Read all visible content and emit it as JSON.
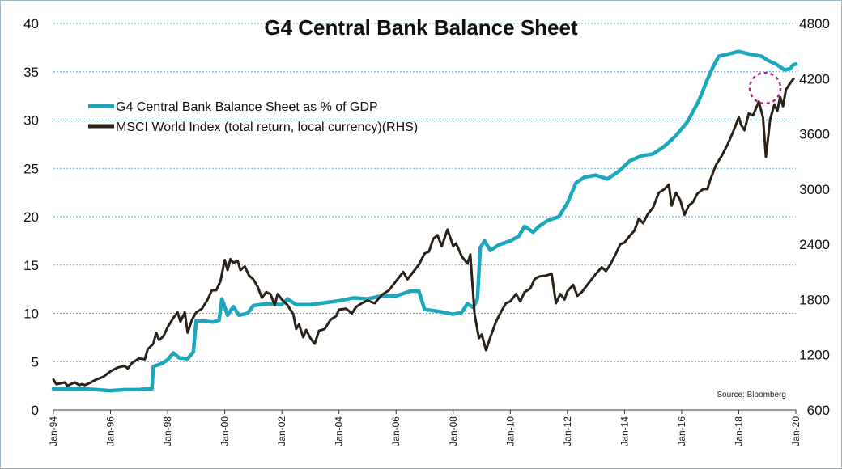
{
  "chart_data": {
    "type": "line",
    "title": "G4 Central Bank Balance Sheet",
    "source": "Source: Bloomberg",
    "grid": true,
    "legend_position": "top-left",
    "x_ticks": [
      "Jan-94",
      "Jan-96",
      "Jan-98",
      "Jan-00",
      "Jan-02",
      "Jan-04",
      "Jan-06",
      "Jan-08",
      "Jan-10",
      "Jan-12",
      "Jan-14",
      "Jan-16",
      "Jan-18",
      "Jan-20"
    ],
    "xlim": [
      1994.0,
      2020.0
    ],
    "y_left": {
      "label": "",
      "ticks": [
        "0",
        "5",
        "10",
        "15",
        "20",
        "25",
        "30",
        "35",
        "40"
      ],
      "lim": [
        0,
        40
      ]
    },
    "y_right": {
      "label": "",
      "ticks": [
        "600",
        "1200",
        "1800",
        "2400",
        "3000",
        "3600",
        "4200",
        "4800"
      ],
      "lim": [
        600,
        4800
      ]
    },
    "colors": {
      "g4": "#1ba8bd",
      "msci": "#2a2118",
      "highlight": "#b3287e",
      "grid": "#5aaed0"
    },
    "series": [
      {
        "name": "G4 Central Bank Balance Sheet as % of GDP",
        "axis": "left",
        "points": [
          [
            1994.0,
            2.2
          ],
          [
            1995.0,
            2.2
          ],
          [
            1995.5,
            2.1
          ],
          [
            1996.0,
            2.0
          ],
          [
            1996.5,
            2.1
          ],
          [
            1997.0,
            2.1
          ],
          [
            1997.3,
            2.2
          ],
          [
            1997.45,
            2.2
          ],
          [
            1997.5,
            4.5
          ],
          [
            1997.8,
            4.8
          ],
          [
            1998.0,
            5.2
          ],
          [
            1998.2,
            5.9
          ],
          [
            1998.4,
            5.4
          ],
          [
            1998.7,
            5.3
          ],
          [
            1998.9,
            6.0
          ],
          [
            1999.0,
            9.2
          ],
          [
            1999.3,
            9.2
          ],
          [
            1999.6,
            9.1
          ],
          [
            1999.8,
            9.3
          ],
          [
            1999.9,
            11.5
          ],
          [
            2000.1,
            9.8
          ],
          [
            2000.3,
            10.7
          ],
          [
            2000.5,
            9.8
          ],
          [
            2000.8,
            10.0
          ],
          [
            2001.0,
            10.8
          ],
          [
            2001.5,
            11.0
          ],
          [
            2002.0,
            10.9
          ],
          [
            2002.2,
            11.5
          ],
          [
            2002.5,
            10.9
          ],
          [
            2003.0,
            10.9
          ],
          [
            2003.5,
            11.1
          ],
          [
            2004.0,
            11.3
          ],
          [
            2004.5,
            11.6
          ],
          [
            2005.0,
            11.5
          ],
          [
            2005.5,
            11.8
          ],
          [
            2006.0,
            11.8
          ],
          [
            2006.5,
            12.3
          ],
          [
            2006.8,
            12.3
          ],
          [
            2007.0,
            10.4
          ],
          [
            2007.5,
            10.2
          ],
          [
            2008.0,
            9.9
          ],
          [
            2008.3,
            10.1
          ],
          [
            2008.5,
            11.0
          ],
          [
            2008.7,
            10.6
          ],
          [
            2008.85,
            11.5
          ],
          [
            2008.95,
            16.8
          ],
          [
            2009.1,
            17.5
          ],
          [
            2009.3,
            16.5
          ],
          [
            2009.6,
            17.1
          ],
          [
            2010.0,
            17.5
          ],
          [
            2010.3,
            18.0
          ],
          [
            2010.5,
            19.0
          ],
          [
            2010.8,
            18.4
          ],
          [
            2011.0,
            19.0
          ],
          [
            2011.3,
            19.6
          ],
          [
            2011.7,
            20.0
          ],
          [
            2012.0,
            21.4
          ],
          [
            2012.3,
            23.5
          ],
          [
            2012.6,
            24.1
          ],
          [
            2013.0,
            24.3
          ],
          [
            2013.4,
            23.9
          ],
          [
            2013.8,
            24.7
          ],
          [
            2014.2,
            25.8
          ],
          [
            2014.6,
            26.3
          ],
          [
            2015.0,
            26.5
          ],
          [
            2015.4,
            27.3
          ],
          [
            2015.8,
            28.4
          ],
          [
            2016.2,
            29.8
          ],
          [
            2016.6,
            32.0
          ],
          [
            2016.9,
            34.2
          ],
          [
            2017.1,
            35.5
          ],
          [
            2017.3,
            36.6
          ],
          [
            2017.6,
            36.8
          ],
          [
            2018.0,
            37.1
          ],
          [
            2018.4,
            36.8
          ],
          [
            2018.8,
            36.6
          ],
          [
            2019.0,
            36.2
          ],
          [
            2019.3,
            35.8
          ],
          [
            2019.6,
            35.2
          ],
          [
            2019.8,
            35.3
          ],
          [
            2019.9,
            35.7
          ],
          [
            2020.0,
            35.8
          ]
        ]
      },
      {
        "name": "MSCI World Index (total return, local currency)(RHS)",
        "axis": "right",
        "points": [
          [
            1994.0,
            930
          ],
          [
            1994.1,
            880
          ],
          [
            1994.25,
            890
          ],
          [
            1994.4,
            900
          ],
          [
            1994.5,
            860
          ],
          [
            1994.6,
            880
          ],
          [
            1994.75,
            900
          ],
          [
            1994.9,
            870
          ],
          [
            1995.0,
            880
          ],
          [
            1995.1,
            870
          ],
          [
            1995.25,
            890
          ],
          [
            1995.5,
            930
          ],
          [
            1995.75,
            960
          ],
          [
            1996.0,
            1020
          ],
          [
            1996.25,
            1060
          ],
          [
            1996.5,
            1080
          ],
          [
            1996.6,
            1050
          ],
          [
            1996.75,
            1110
          ],
          [
            1997.0,
            1160
          ],
          [
            1997.2,
            1150
          ],
          [
            1997.3,
            1260
          ],
          [
            1997.5,
            1320
          ],
          [
            1997.6,
            1440
          ],
          [
            1997.7,
            1360
          ],
          [
            1997.85,
            1400
          ],
          [
            1998.0,
            1500
          ],
          [
            1998.2,
            1600
          ],
          [
            1998.35,
            1660
          ],
          [
            1998.45,
            1560
          ],
          [
            1998.6,
            1660
          ],
          [
            1998.7,
            1440
          ],
          [
            1998.85,
            1580
          ],
          [
            1999.0,
            1660
          ],
          [
            1999.2,
            1700
          ],
          [
            1999.4,
            1800
          ],
          [
            1999.55,
            1900
          ],
          [
            1999.7,
            1900
          ],
          [
            1999.85,
            2000
          ],
          [
            2000.0,
            2230
          ],
          [
            2000.1,
            2120
          ],
          [
            2000.2,
            2240
          ],
          [
            2000.3,
            2200
          ],
          [
            2000.45,
            2220
          ],
          [
            2000.55,
            2120
          ],
          [
            2000.7,
            2160
          ],
          [
            2000.85,
            2060
          ],
          [
            2001.0,
            2020
          ],
          [
            2001.15,
            1940
          ],
          [
            2001.3,
            1820
          ],
          [
            2001.45,
            1880
          ],
          [
            2001.6,
            1860
          ],
          [
            2001.75,
            1740
          ],
          [
            2001.85,
            1860
          ],
          [
            2002.0,
            1800
          ],
          [
            2002.2,
            1740
          ],
          [
            2002.4,
            1640
          ],
          [
            2002.5,
            1480
          ],
          [
            2002.6,
            1530
          ],
          [
            2002.75,
            1390
          ],
          [
            2002.85,
            1470
          ],
          [
            2003.0,
            1380
          ],
          [
            2003.15,
            1320
          ],
          [
            2003.3,
            1460
          ],
          [
            2003.5,
            1480
          ],
          [
            2003.7,
            1580
          ],
          [
            2003.9,
            1620
          ],
          [
            2004.0,
            1690
          ],
          [
            2004.25,
            1700
          ],
          [
            2004.45,
            1650
          ],
          [
            2004.6,
            1720
          ],
          [
            2004.8,
            1760
          ],
          [
            2005.0,
            1790
          ],
          [
            2005.25,
            1760
          ],
          [
            2005.5,
            1850
          ],
          [
            2005.75,
            1900
          ],
          [
            2006.0,
            2000
          ],
          [
            2006.25,
            2100
          ],
          [
            2006.4,
            2020
          ],
          [
            2006.6,
            2100
          ],
          [
            2006.8,
            2180
          ],
          [
            2007.0,
            2300
          ],
          [
            2007.15,
            2320
          ],
          [
            2007.3,
            2460
          ],
          [
            2007.45,
            2500
          ],
          [
            2007.6,
            2380
          ],
          [
            2007.8,
            2560
          ],
          [
            2008.0,
            2380
          ],
          [
            2008.1,
            2410
          ],
          [
            2008.3,
            2270
          ],
          [
            2008.5,
            2190
          ],
          [
            2008.6,
            2290
          ],
          [
            2008.75,
            1640
          ],
          [
            2008.9,
            1380
          ],
          [
            2009.0,
            1420
          ],
          [
            2009.15,
            1250
          ],
          [
            2009.3,
            1390
          ],
          [
            2009.5,
            1560
          ],
          [
            2009.7,
            1680
          ],
          [
            2009.85,
            1760
          ],
          [
            2010.0,
            1780
          ],
          [
            2010.2,
            1860
          ],
          [
            2010.35,
            1780
          ],
          [
            2010.5,
            1880
          ],
          [
            2010.7,
            1920
          ],
          [
            2010.85,
            2020
          ],
          [
            2011.0,
            2050
          ],
          [
            2011.25,
            2060
          ],
          [
            2011.45,
            2080
          ],
          [
            2011.6,
            1760
          ],
          [
            2011.75,
            1860
          ],
          [
            2011.9,
            1800
          ],
          [
            2012.0,
            1890
          ],
          [
            2012.2,
            1960
          ],
          [
            2012.35,
            1840
          ],
          [
            2012.5,
            1880
          ],
          [
            2012.7,
            1960
          ],
          [
            2012.9,
            2040
          ],
          [
            2013.0,
            2080
          ],
          [
            2013.2,
            2150
          ],
          [
            2013.35,
            2110
          ],
          [
            2013.5,
            2180
          ],
          [
            2013.7,
            2300
          ],
          [
            2013.85,
            2400
          ],
          [
            2014.0,
            2420
          ],
          [
            2014.2,
            2500
          ],
          [
            2014.35,
            2550
          ],
          [
            2014.5,
            2680
          ],
          [
            2014.65,
            2630
          ],
          [
            2014.8,
            2720
          ],
          [
            2015.0,
            2800
          ],
          [
            2015.2,
            2960
          ],
          [
            2015.4,
            3000
          ],
          [
            2015.55,
            3050
          ],
          [
            2015.65,
            2820
          ],
          [
            2015.8,
            2960
          ],
          [
            2015.95,
            2880
          ],
          [
            2016.1,
            2720
          ],
          [
            2016.25,
            2820
          ],
          [
            2016.4,
            2860
          ],
          [
            2016.55,
            2950
          ],
          [
            2016.75,
            3000
          ],
          [
            2016.9,
            3000
          ],
          [
            2017.0,
            3100
          ],
          [
            2017.2,
            3260
          ],
          [
            2017.4,
            3360
          ],
          [
            2017.6,
            3480
          ],
          [
            2017.8,
            3620
          ],
          [
            2018.0,
            3780
          ],
          [
            2018.08,
            3700
          ],
          [
            2018.2,
            3640
          ],
          [
            2018.35,
            3820
          ],
          [
            2018.5,
            3800
          ],
          [
            2018.7,
            3950
          ],
          [
            2018.85,
            3780
          ],
          [
            2018.95,
            3350
          ],
          [
            2019.1,
            3760
          ],
          [
            2019.25,
            3920
          ],
          [
            2019.35,
            3850
          ],
          [
            2019.45,
            4000
          ],
          [
            2019.55,
            3900
          ],
          [
            2019.65,
            4080
          ],
          [
            2019.8,
            4150
          ],
          [
            2019.92,
            4200
          ]
        ]
      }
    ]
  }
}
